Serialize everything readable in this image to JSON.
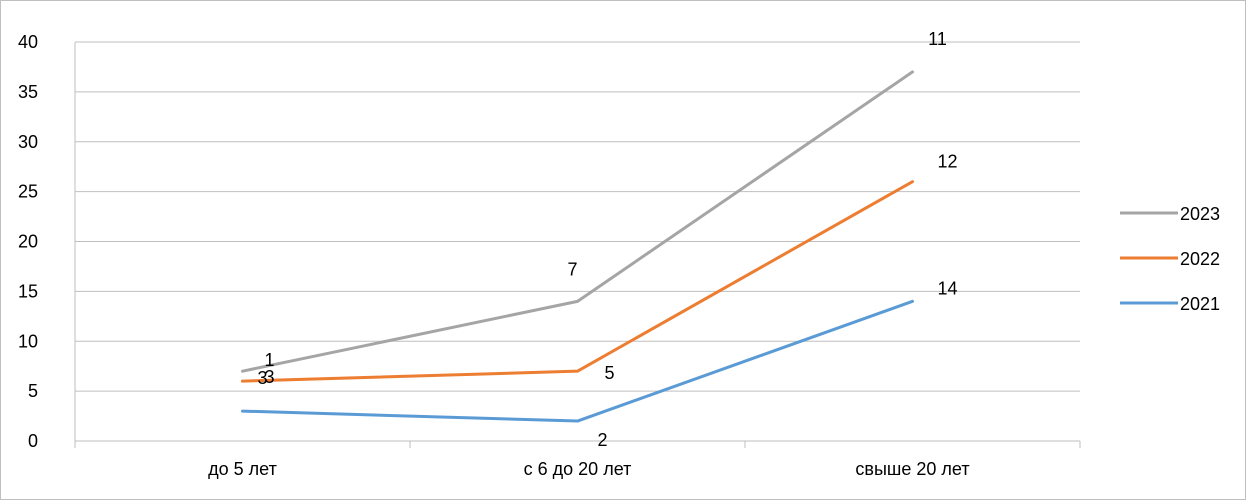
{
  "chart_data": {
    "type": "line",
    "categories": [
      "до 5 лет",
      "с 6 до 20 лет",
      "свыше 20 лет"
    ],
    "ylim": [
      0,
      40
    ],
    "yticks": [
      "0",
      "5",
      "10",
      "15",
      "20",
      "25",
      "30",
      "35",
      "40"
    ],
    "grid": true,
    "legend_position": "right",
    "series": [
      {
        "name": "2021",
        "color": "#5B9BD5",
        "values": [
          3,
          2,
          14
        ],
        "labels": [
          "3",
          "2",
          "14"
        ]
      },
      {
        "name": "2022",
        "color": "#ED7D31",
        "values": [
          6,
          7,
          26
        ],
        "labels": [
          "3",
          "5",
          "12"
        ]
      },
      {
        "name": "2023",
        "color": "#A5A5A5",
        "values": [
          7,
          14,
          37
        ],
        "labels": [
          "1",
          "7",
          "11"
        ]
      }
    ]
  }
}
